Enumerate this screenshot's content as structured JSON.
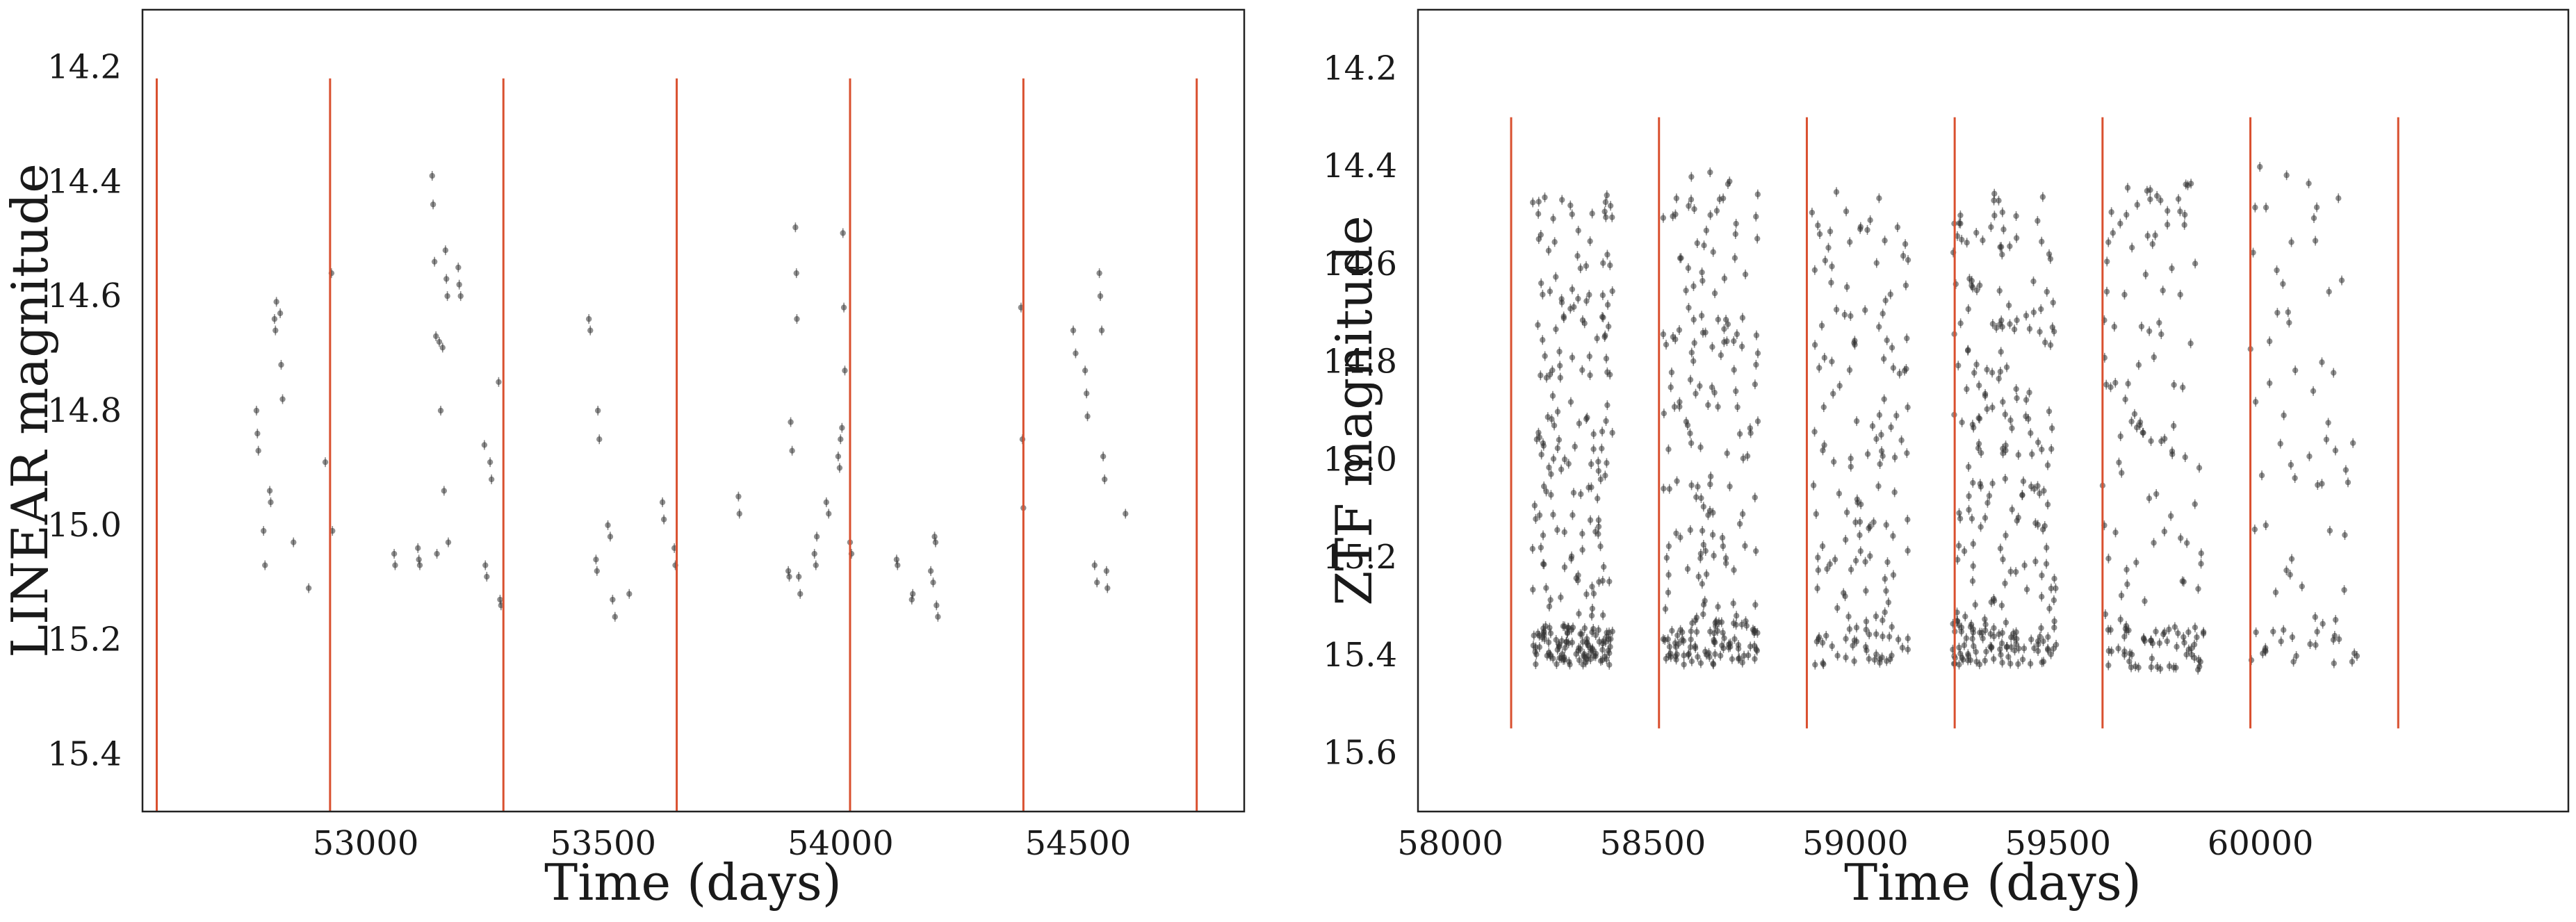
{
  "colors": {
    "background": "#ffffff",
    "frame": "#222222",
    "points": "#333333",
    "vlines": "#d9502f"
  },
  "chart_data": [
    {
      "type": "scatter",
      "title": "",
      "xlabel": "Time (days)",
      "ylabel": "LINEAR magnitude",
      "xlim": [
        52530,
        54850
      ],
      "ylim": [
        15.5,
        14.1
      ],
      "y_inverted": true,
      "grid": false,
      "legend": "none",
      "xticks": [
        53000,
        53500,
        54000,
        54500
      ],
      "xtick_labels": [
        "53000",
        "53500",
        "54000",
        "54500"
      ],
      "yticks": [
        14.2,
        14.4,
        14.6,
        14.8,
        15.0,
        15.2,
        15.4
      ],
      "ytick_labels": [
        "14.2",
        "14.4",
        "14.6",
        "14.8",
        "15.0",
        "15.2",
        "15.4"
      ],
      "vlines": {
        "x": [
          52560,
          52925,
          53290,
          53655,
          54020,
          54385,
          54750
        ],
        "ymin": 14.22,
        "ymax": 15.5
      },
      "series": [
        {
          "points": [
            [
              52770,
              14.8
            ],
            [
              52772,
              14.84
            ],
            [
              52774,
              14.87
            ],
            [
              52785,
              15.01
            ],
            [
              52788,
              15.07
            ],
            [
              52798,
              14.94
            ],
            [
              52800,
              14.96
            ],
            [
              52808,
              14.64
            ],
            [
              52810,
              14.66
            ],
            [
              52812,
              14.61
            ],
            [
              52820,
              14.63
            ],
            [
              52822,
              14.72
            ],
            [
              52825,
              14.78
            ],
            [
              52848,
              15.03
            ],
            [
              52880,
              15.11
            ],
            [
              52915,
              14.89
            ],
            [
              52928,
              14.56
            ],
            [
              52930,
              15.01
            ],
            [
              53060,
              15.05
            ],
            [
              53062,
              15.07
            ],
            [
              53110,
              15.04
            ],
            [
              53112,
              15.06
            ],
            [
              53114,
              15.07
            ],
            [
              53140,
              14.39
            ],
            [
              53142,
              14.44
            ],
            [
              53145,
              14.54
            ],
            [
              53148,
              14.67
            ],
            [
              53150,
              15.05
            ],
            [
              53155,
              14.68
            ],
            [
              53158,
              14.8
            ],
            [
              53162,
              14.69
            ],
            [
              53165,
              14.94
            ],
            [
              53168,
              14.52
            ],
            [
              53170,
              14.57
            ],
            [
              53172,
              14.6
            ],
            [
              53174,
              15.03
            ],
            [
              53195,
              14.55
            ],
            [
              53197,
              14.58
            ],
            [
              53200,
              14.6
            ],
            [
              53250,
              14.86
            ],
            [
              53252,
              15.07
            ],
            [
              53255,
              15.09
            ],
            [
              53262,
              14.89
            ],
            [
              53265,
              14.92
            ],
            [
              53280,
              14.75
            ],
            [
              53283,
              15.13
            ],
            [
              53285,
              15.14
            ],
            [
              53470,
              14.64
            ],
            [
              53473,
              14.66
            ],
            [
              53485,
              15.06
            ],
            [
              53487,
              15.08
            ],
            [
              53489,
              14.8
            ],
            [
              53492,
              14.85
            ],
            [
              53510,
              15.0
            ],
            [
              53515,
              15.02
            ],
            [
              53520,
              15.13
            ],
            [
              53525,
              15.16
            ],
            [
              53555,
              15.12
            ],
            [
              53625,
              14.96
            ],
            [
              53628,
              14.99
            ],
            [
              53650,
              15.04
            ],
            [
              53652,
              15.07
            ],
            [
              53785,
              14.95
            ],
            [
              53787,
              14.98
            ],
            [
              53890,
              15.08
            ],
            [
              53892,
              15.09
            ],
            [
              53895,
              14.82
            ],
            [
              53898,
              14.87
            ],
            [
              53905,
              14.48
            ],
            [
              53907,
              14.56
            ],
            [
              53908,
              14.64
            ],
            [
              53912,
              15.09
            ],
            [
              53915,
              15.12
            ],
            [
              53945,
              15.05
            ],
            [
              53948,
              15.07
            ],
            [
              53950,
              15.02
            ],
            [
              53970,
              14.96
            ],
            [
              53975,
              14.98
            ],
            [
              53995,
              14.88
            ],
            [
              53998,
              14.9
            ],
            [
              54000,
              14.85
            ],
            [
              54003,
              14.83
            ],
            [
              54005,
              14.49
            ],
            [
              54007,
              14.62
            ],
            [
              54009,
              14.73
            ],
            [
              54020,
              15.03
            ],
            [
              54023,
              15.05
            ],
            [
              54118,
              15.06
            ],
            [
              54120,
              15.07
            ],
            [
              54150,
              15.13
            ],
            [
              54152,
              15.12
            ],
            [
              54190,
              15.08
            ],
            [
              54195,
              15.1
            ],
            [
              54198,
              15.02
            ],
            [
              54200,
              15.03
            ],
            [
              54202,
              15.14
            ],
            [
              54205,
              15.16
            ],
            [
              54380,
              14.62
            ],
            [
              54383,
              14.85
            ],
            [
              54385,
              14.97
            ],
            [
              54490,
              14.66
            ],
            [
              54495,
              14.7
            ],
            [
              54515,
              14.73
            ],
            [
              54518,
              14.77
            ],
            [
              54520,
              14.81
            ],
            [
              54535,
              15.07
            ],
            [
              54540,
              15.1
            ],
            [
              54545,
              14.56
            ],
            [
              54547,
              14.6
            ],
            [
              54550,
              14.66
            ],
            [
              54553,
              14.88
            ],
            [
              54556,
              14.92
            ],
            [
              54560,
              15.08
            ],
            [
              54562,
              15.11
            ],
            [
              54600,
              14.98
            ]
          ]
        }
      ]
    },
    {
      "type": "scatter",
      "title": "",
      "xlabel": "Time (days)",
      "ylabel": "ZTF magnitude",
      "xlim": [
        57920,
        60760
      ],
      "ylim": [
        15.72,
        14.08
      ],
      "y_inverted": true,
      "grid": false,
      "legend": "none",
      "xticks": [
        58000,
        58500,
        59000,
        59500,
        60000
      ],
      "xtick_labels": [
        "58000",
        "58500",
        "59000",
        "59500",
        "60000"
      ],
      "yticks": [
        14.2,
        14.4,
        14.6,
        14.8,
        15.0,
        15.2,
        15.4,
        15.6
      ],
      "ytick_labels": [
        "14.2",
        "14.4",
        "14.6",
        "14.8",
        "15.0",
        "15.2",
        "15.4",
        "15.6"
      ],
      "vlines": {
        "x": [
          58150,
          58515,
          58880,
          59245,
          59610,
          59975,
          60340
        ],
        "ymin": 14.3,
        "ymax": 15.55
      },
      "point_clusters": [
        {
          "x_range": [
            58200,
            58400
          ],
          "y_range": [
            14.45,
            15.42
          ],
          "count": 260,
          "dense_band": [
            15.34,
            15.42
          ],
          "dense_fraction": 0.35
        },
        {
          "x_range": [
            58525,
            58760
          ],
          "y_range": [
            14.4,
            15.42
          ],
          "count": 230,
          "dense_band": [
            15.33,
            15.42
          ],
          "dense_fraction": 0.3
        },
        {
          "x_range": [
            58890,
            59130
          ],
          "y_range": [
            14.45,
            15.42
          ],
          "count": 160,
          "dense_band": [
            15.34,
            15.42
          ],
          "dense_fraction": 0.25
        },
        {
          "x_range": [
            59240,
            59500
          ],
          "y_range": [
            14.44,
            15.42
          ],
          "count": 260,
          "dense_band": [
            15.33,
            15.42
          ],
          "dense_fraction": 0.3
        },
        {
          "x_range": [
            59610,
            59860
          ],
          "y_range": [
            14.42,
            15.43
          ],
          "count": 150,
          "dense_band": [
            15.34,
            15.43
          ],
          "dense_fraction": 0.25
        },
        {
          "x_range": [
            59975,
            60240
          ],
          "y_range": [
            14.4,
            15.43
          ],
          "count": 75,
          "dense_band": [
            15.34,
            15.43
          ],
          "dense_fraction": 0.2
        }
      ]
    }
  ]
}
